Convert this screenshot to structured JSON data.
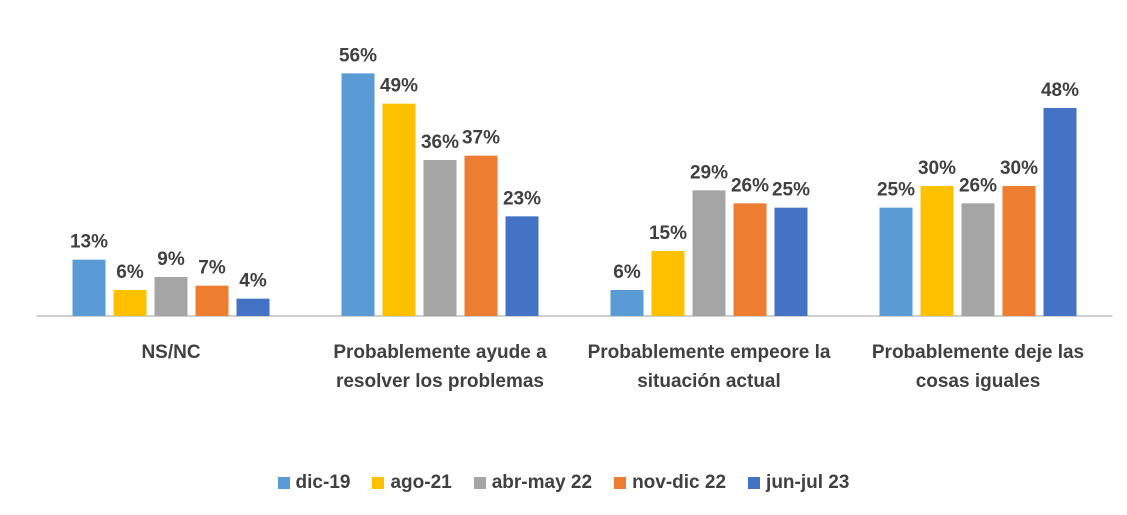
{
  "chart_data": {
    "type": "bar",
    "categories": [
      "NS/NC",
      "Probablemente ayude a resolver los problemas",
      "Probablemente empeore la situación actual",
      "Probablemente deje las cosas iguales"
    ],
    "series": [
      {
        "name": "dic-19",
        "color": "#5b9bd5",
        "values": [
          13,
          56,
          6,
          25
        ],
        "value_labels": [
          "13%",
          "56%",
          "6%",
          "25%"
        ]
      },
      {
        "name": "ago-21",
        "color": "#ffc000",
        "values": [
          6,
          49,
          15,
          30
        ],
        "value_labels": [
          "6%",
          "49%",
          "15%",
          "30%"
        ]
      },
      {
        "name": "abr-may 22",
        "color": "#a5a5a5",
        "values": [
          9,
          36,
          29,
          26
        ],
        "value_labels": [
          "9%",
          "36%",
          "29%",
          "26%"
        ]
      },
      {
        "name": "nov-dic 22",
        "color": "#ed7d31",
        "values": [
          7,
          37,
          26,
          30
        ],
        "value_labels": [
          "7%",
          "37%",
          "26%",
          "30%"
        ]
      },
      {
        "name": "jun-jul 23",
        "color": "#4472c4",
        "values": [
          4,
          23,
          25,
          48
        ],
        "value_labels": [
          "4%",
          "23%",
          "25%",
          "48%"
        ]
      }
    ],
    "ylim": [
      0,
      60
    ],
    "legend": "bottom"
  }
}
